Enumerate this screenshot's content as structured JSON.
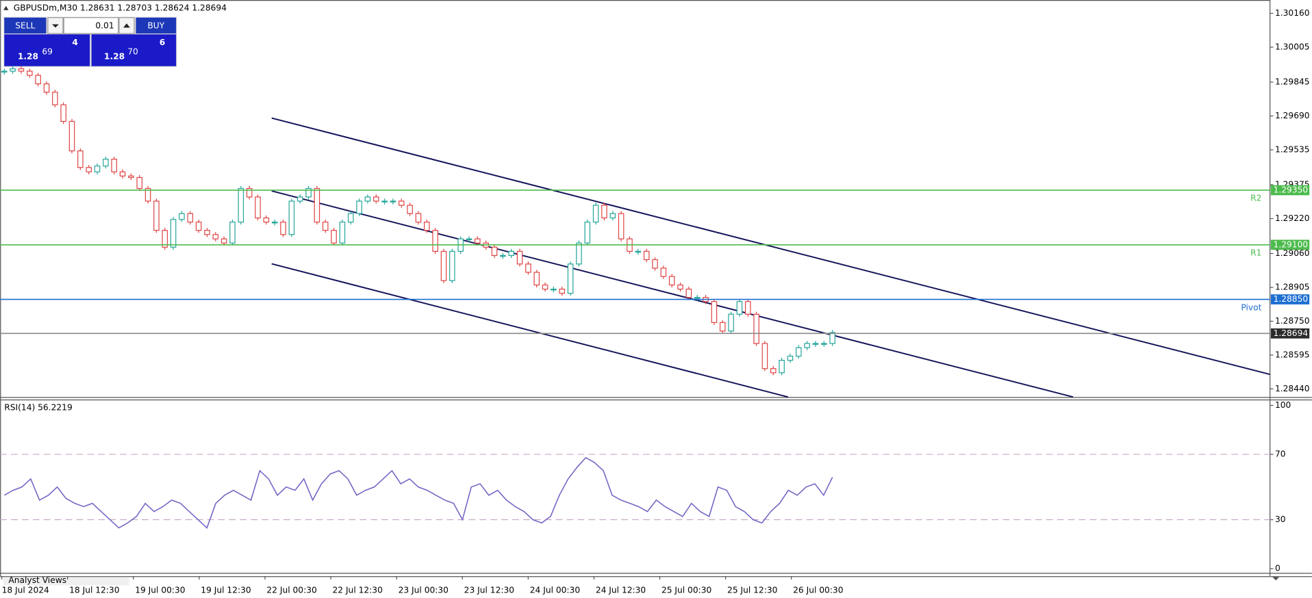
{
  "header": {
    "symbol_info": "GBPUSDm,M30  1.28631 1.28703 1.28624 1.28694"
  },
  "trade_panel": {
    "sell": "SELL",
    "buy": "BUY",
    "lot": "0.01",
    "bid": {
      "big": "1.28",
      "main": "69",
      "small": "4"
    },
    "ask": {
      "big": "1.28",
      "main": "70",
      "small": "6"
    }
  },
  "footer_tab": "Analyst Views",
  "chart_data": [
    {
      "type": "candlestick",
      "closes": [
        1.29895,
        1.29906,
        1.29895,
        1.29876,
        1.29837,
        1.29799,
        1.29741,
        1.29665,
        1.2953,
        1.29454,
        1.29434,
        1.29461,
        1.29492,
        1.29434,
        1.29415,
        1.29408,
        1.29358,
        1.293,
        1.29166,
        1.29089,
        1.29216,
        1.29243,
        1.29204,
        1.29166,
        1.29147,
        1.29127,
        1.29108,
        1.29204,
        1.29358,
        1.29319,
        1.29223,
        1.29204,
        1.29204,
        1.29147,
        1.293,
        1.29319,
        1.29358,
        1.29204,
        1.29166,
        1.29108,
        1.29204,
        1.29243,
        1.293,
        1.29319,
        1.293,
        1.293,
        1.293,
        1.29281,
        1.29243,
        1.29204,
        1.29166,
        1.2907,
        1.28936,
        1.2907,
        1.29127,
        1.29127,
        1.29108,
        1.29089,
        1.29051,
        1.29051,
        1.2907,
        1.29012,
        1.28974,
        1.28916,
        1.28897,
        1.28897,
        1.28878,
        1.29012,
        1.29108,
        1.29204,
        1.29281,
        1.29223,
        1.29243,
        1.29127,
        1.2907,
        1.2907,
        1.29032,
        1.28993,
        1.28955,
        1.28916,
        1.28897,
        1.28859,
        1.28859,
        1.2884,
        1.28744,
        1.28705,
        1.28782,
        1.2884,
        1.28782,
        1.28648,
        1.28533,
        1.28514,
        1.28571,
        1.2859,
        1.28629,
        1.28648,
        1.28648,
        1.28648,
        1.28698
      ],
      "up_color": "#26a69a",
      "down_color": "#e04646",
      "ylim": [
        1.28403,
        1.30221
      ],
      "yticks": [
        {
          "value": 1.3016,
          "label": "1.30160"
        },
        {
          "value": 1.30005,
          "label": "1.30005"
        },
        {
          "value": 1.29845,
          "label": "1.29845"
        },
        {
          "value": 1.2969,
          "label": "1.29690"
        },
        {
          "value": 1.29535,
          "label": "1.29535"
        },
        {
          "value": 1.29375,
          "label": "1.29375"
        },
        {
          "value": 1.2922,
          "label": "1.29220"
        },
        {
          "value": 1.2906,
          "label": "1.29060"
        },
        {
          "value": 1.28905,
          "label": "1.28905"
        },
        {
          "value": 1.2875,
          "label": "1.28750"
        },
        {
          "value": 1.28595,
          "label": "1.28595"
        },
        {
          "value": 1.2844,
          "label": "1.28440"
        }
      ],
      "levels": [
        {
          "value": 1.2935,
          "label": "1.29350",
          "tag": "R2",
          "color": "#4cbb4c"
        },
        {
          "value": 1.291,
          "label": "1.29100",
          "tag": "R1",
          "color": "#4cbb4c"
        },
        {
          "value": 1.2885,
          "label": "1.28850",
          "tag": "Pivot",
          "color": "#1e6fd0"
        },
        {
          "value": 1.28694,
          "label": "1.28694",
          "color": "#8a8a8a"
        }
      ],
      "x_labels": [
        "18 Jul 2024",
        "18 Jul 12:30",
        "19 Jul 00:30",
        "19 Jul 12:30",
        "22 Jul 00:30",
        "22 Jul 12:30",
        "23 Jul 00:30",
        "23 Jul 12:30",
        "24 Jul 00:30",
        "24 Jul 12:30",
        "25 Jul 00:30",
        "25 Jul 12:30",
        "26 Jul 00:30"
      ]
    },
    {
      "type": "line",
      "title": "RSI(14) 56.2219",
      "color": "#7466c4",
      "values": [
        45,
        48,
        50,
        55,
        42,
        45,
        50,
        43,
        40,
        38,
        40,
        35,
        30,
        25,
        28,
        32,
        40,
        35,
        38,
        42,
        40,
        35,
        30,
        25,
        40,
        45,
        48,
        45,
        42,
        60,
        55,
        45,
        50,
        48,
        55,
        42,
        52,
        58,
        60,
        55,
        45,
        48,
        50,
        55,
        60,
        52,
        55,
        50,
        48,
        45,
        42,
        40,
        30,
        50,
        52,
        45,
        48,
        42,
        38,
        35,
        30,
        28,
        32,
        45,
        55,
        62,
        68,
        65,
        60,
        45,
        42,
        40,
        38,
        35,
        42,
        38,
        35,
        32,
        40,
        35,
        32,
        50,
        48,
        38,
        35,
        30,
        28,
        35,
        40,
        48,
        45,
        50,
        52,
        45,
        56
      ],
      "ylim": [
        0,
        100
      ],
      "yticks": [
        100,
        70,
        30,
        0
      ],
      "levels": [
        70,
        30
      ]
    }
  ]
}
